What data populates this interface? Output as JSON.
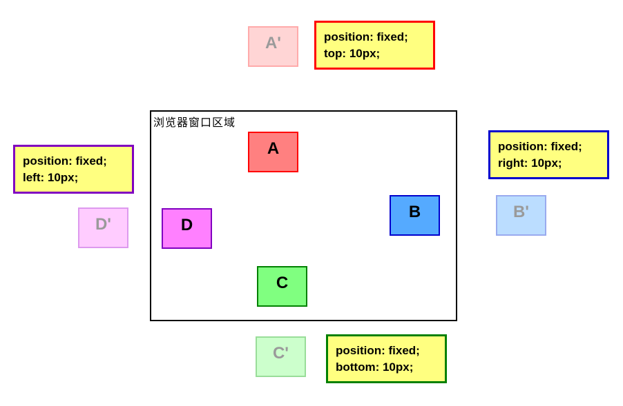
{
  "window": {
    "label": "浏览器窗口区域"
  },
  "boxes": {
    "a": {
      "label": "A",
      "fill": "#ff8080",
      "border": "#ff0000"
    },
    "b": {
      "label": "B",
      "fill": "#55aaff",
      "border": "#0000cc"
    },
    "c": {
      "label": "C",
      "fill": "#80ff80",
      "border": "#008000"
    },
    "d": {
      "label": "D",
      "fill": "#ff80ff",
      "border": "#8000c0"
    },
    "a_prime": {
      "label": "A'",
      "fill": "#ffd5d5",
      "border": "#ffaaaa"
    },
    "b_prime": {
      "label": "B'",
      "fill": "#bbddff",
      "border": "#99aaee"
    },
    "c_prime": {
      "label": "C'",
      "fill": "#ccffcc",
      "border": "#99dd99"
    },
    "d_prime": {
      "label": "D'",
      "fill": "#ffccff",
      "border": "#dd99ee"
    }
  },
  "notes": {
    "top": {
      "line1": "position: fixed;",
      "line2": "top: 10px;",
      "border": "#ff0000"
    },
    "right": {
      "line1": "position: fixed;",
      "line2": "right: 10px;",
      "border": "#0000cc"
    },
    "bottom": {
      "line1": "position: fixed;",
      "line2": "bottom: 10px;",
      "border": "#008000"
    },
    "left": {
      "line1": "position: fixed;",
      "line2": "left: 10px;",
      "border": "#8000c0"
    }
  },
  "colors": {
    "note_fill": "#ffff80",
    "window_border": "#000000"
  }
}
